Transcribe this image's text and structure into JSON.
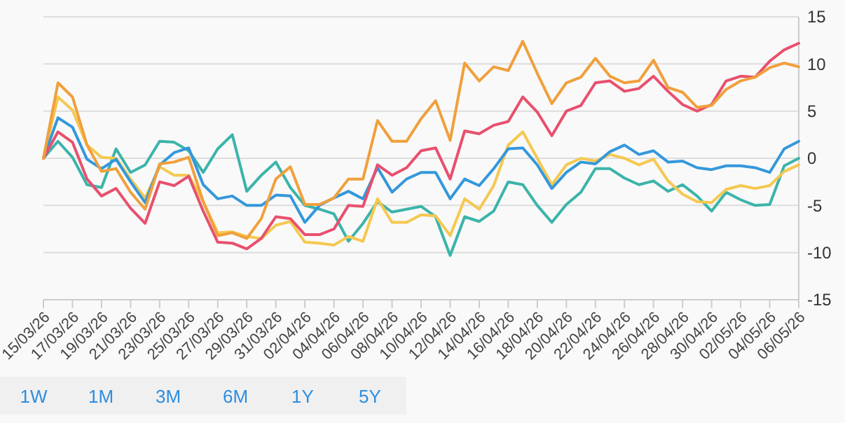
{
  "chart_data": {
    "type": "line",
    "x": [
      "--03-15",
      "--03-16",
      "--03-17",
      "--03-18",
      "--03-19",
      "--03-20",
      "--03-21",
      "--03-22",
      "--03-23",
      "--03-24",
      "--03-25",
      "--03-26",
      "--03-27",
      "--03-28",
      "--03-29",
      "--03-30",
      "--03-31",
      "--04-01",
      "--04-02",
      "--04-03",
      "--04-04",
      "--04-05",
      "--04-06",
      "--04-07",
      "--04-08",
      "--04-09",
      "--04-10",
      "--04-11",
      "--04-12",
      "--04-13",
      "--04-14",
      "--04-15",
      "--04-16",
      "--04-17",
      "--04-18",
      "--04-19",
      "--04-20",
      "--04-21",
      "--04-22",
      "--04-23",
      "--04-24",
      "--04-25",
      "--04-26",
      "--04-27",
      "--04-28",
      "--04-29",
      "--04-30",
      "--05-01",
      "--05-02",
      "--05-03",
      "--05-04",
      "--05-05",
      "--05-06"
    ],
    "series": [
      {
        "color": "#3cb4aa",
        "values": [
          0,
          1.8,
          0.1,
          -2.8,
          -3.1,
          1.0,
          -1.5,
          -0.7,
          1.8,
          1.7,
          0.8,
          -1.5,
          1.0,
          2.5,
          -3.5,
          -1.8,
          -0.4,
          -3.1,
          -5.0,
          -5.4,
          -5.9,
          -8.8,
          -6.9,
          -4.6,
          -5.7,
          -5.4,
          -5.1,
          -6.2,
          -10.3,
          -6.2,
          -6.7,
          -5.6,
          -2.5,
          -2.8,
          -5.0,
          -6.8,
          -4.9,
          -3.6,
          -1.1,
          -1.1,
          -2.1,
          -2.8,
          -2.4,
          -3.5,
          -2.8,
          -4.0,
          -5.6,
          -3.6,
          -4.4,
          -5.0,
          -4.9,
          -0.8,
          0
        ]
      },
      {
        "color": "#f5c850",
        "values": [
          0,
          6.5,
          5.1,
          1.4,
          0.1,
          0,
          -2.2,
          -4.2,
          -0.9,
          -1.8,
          -1.8,
          -4.6,
          -7.9,
          -7.8,
          -8.3,
          -8.5,
          -7.1,
          -6.7,
          -8.9,
          -9.0,
          -9.2,
          -8.3,
          -8.8,
          -4.3,
          -6.8,
          -6.8,
          -6.0,
          -6.1,
          -8.2,
          -4.3,
          -5.4,
          -2.9,
          1.4,
          2.8,
          0,
          -2.8,
          -0.7,
          0,
          -0.3,
          0.4,
          0,
          -0.7,
          -0.1,
          -2.4,
          -3.8,
          -4.6,
          -4.7,
          -3.3,
          -2.9,
          -3.2,
          -2.9,
          -1.4,
          -0.7
        ]
      },
      {
        "color": "#3498db",
        "values": [
          0,
          4.3,
          3.3,
          -0.1,
          -1.1,
          -0.1,
          -2.5,
          -4.7,
          -0.7,
          0.6,
          1.1,
          -2.8,
          -4.3,
          -4.0,
          -5.0,
          -5.0,
          -3.9,
          -4.0,
          -6.8,
          -5.0,
          -4.2,
          -3.5,
          -4.3,
          -1.0,
          -3.6,
          -2.2,
          -1.5,
          -1.5,
          -4.3,
          -2.2,
          -2.9,
          -1.1,
          1.0,
          1.1,
          -0.7,
          -3.2,
          -1.5,
          -0.4,
          -0.6,
          0.7,
          1.4,
          0.4,
          0.8,
          -0.4,
          -0.3,
          -1.0,
          -1.2,
          -0.8,
          -0.8,
          -1.0,
          -1.5,
          1.0,
          1.8
        ]
      },
      {
        "color": "#e8506e",
        "values": [
          0,
          2.8,
          1.7,
          -2.2,
          -4.0,
          -3.2,
          -5.3,
          -6.9,
          -2.5,
          -2.9,
          -1.9,
          -5.6,
          -8.9,
          -9.0,
          -9.6,
          -8.5,
          -6.2,
          -6.4,
          -8.1,
          -8.1,
          -7.5,
          -5.0,
          -5.1,
          -0.7,
          -1.8,
          -1.0,
          0.8,
          1.1,
          -2.2,
          2.9,
          2.6,
          3.5,
          3.9,
          6.5,
          4.9,
          2.4,
          5.0,
          5.6,
          8.0,
          8.2,
          7.1,
          7.4,
          8.7,
          7.1,
          5.7,
          5.0,
          5.7,
          8.2,
          8.7,
          8.6,
          10.3,
          11.5,
          12.2
        ]
      },
      {
        "color": "#f0a03c",
        "values": [
          0,
          8.0,
          6.5,
          1.4,
          -1.4,
          -1.1,
          -3.6,
          -5.4,
          -0.6,
          -0.4,
          0.1,
          -4.6,
          -8.2,
          -7.9,
          -8.5,
          -6.4,
          -2.2,
          -0.9,
          -4.9,
          -4.9,
          -4.2,
          -2.2,
          -2.2,
          4.0,
          1.8,
          1.8,
          4.2,
          6.1,
          1.9,
          10.1,
          8.2,
          9.7,
          9.3,
          12.4,
          9.0,
          5.8,
          8.0,
          8.6,
          10.6,
          8.7,
          8.0,
          8.2,
          10.4,
          7.5,
          7.0,
          5.4,
          5.6,
          7.3,
          8.2,
          8.6,
          9.6,
          10.1,
          9.7
        ]
      }
    ],
    "xlim": [
      "--03-15",
      "--05-06"
    ],
    "xticks": [
      {
        "value": "--03-15",
        "label": "15/03/26"
      },
      {
        "value": "--03-17",
        "label": "17/03/26"
      },
      {
        "value": "--03-19",
        "label": "19/03/26"
      },
      {
        "value": "--03-21",
        "label": "21/03/26"
      },
      {
        "value": "--03-23",
        "label": "23/03/26"
      },
      {
        "value": "--03-25",
        "label": "25/03/26"
      },
      {
        "value": "--03-27",
        "label": "27/03/26"
      },
      {
        "value": "--03-29",
        "label": "29/03/26"
      },
      {
        "value": "--03-31",
        "label": "31/03/26"
      },
      {
        "value": "--04-02",
        "label": "02/04/26"
      },
      {
        "value": "--04-04",
        "label": "04/04/26"
      },
      {
        "value": "--04-06",
        "label": "06/04/26"
      },
      {
        "value": "--04-08",
        "label": "08/04/26"
      },
      {
        "value": "--04-10",
        "label": "10/04/26"
      },
      {
        "value": "--04-12",
        "label": "12/04/26"
      },
      {
        "value": "--04-14",
        "label": "14/04/26"
      },
      {
        "value": "--04-16",
        "label": "16/04/26"
      },
      {
        "value": "--04-18",
        "label": "18/04/26"
      },
      {
        "value": "--04-20",
        "label": "20/04/26"
      },
      {
        "value": "--04-22",
        "label": "22/04/26"
      },
      {
        "value": "--04-24",
        "label": "24/04/26"
      },
      {
        "value": "--04-26",
        "label": "26/04/26"
      },
      {
        "value": "--04-28",
        "label": "28/04/26"
      },
      {
        "value": "--04-30",
        "label": "30/04/26"
      },
      {
        "value": "--05-02",
        "label": "02/05/26"
      },
      {
        "value": "--05-04",
        "label": "04/05/26"
      },
      {
        "value": "--05-06",
        "label": "06/05/26"
      }
    ],
    "ylim": [
      -15,
      15
    ],
    "yticks": [
      -15,
      -10,
      -5,
      0,
      5,
      10,
      15
    ],
    "grid": "y",
    "marker": "none",
    "line_style": "solid",
    "annotations": [
      "1W",
      "1M",
      "3M",
      "6M",
      "1Y",
      "5Y"
    ]
  }
}
